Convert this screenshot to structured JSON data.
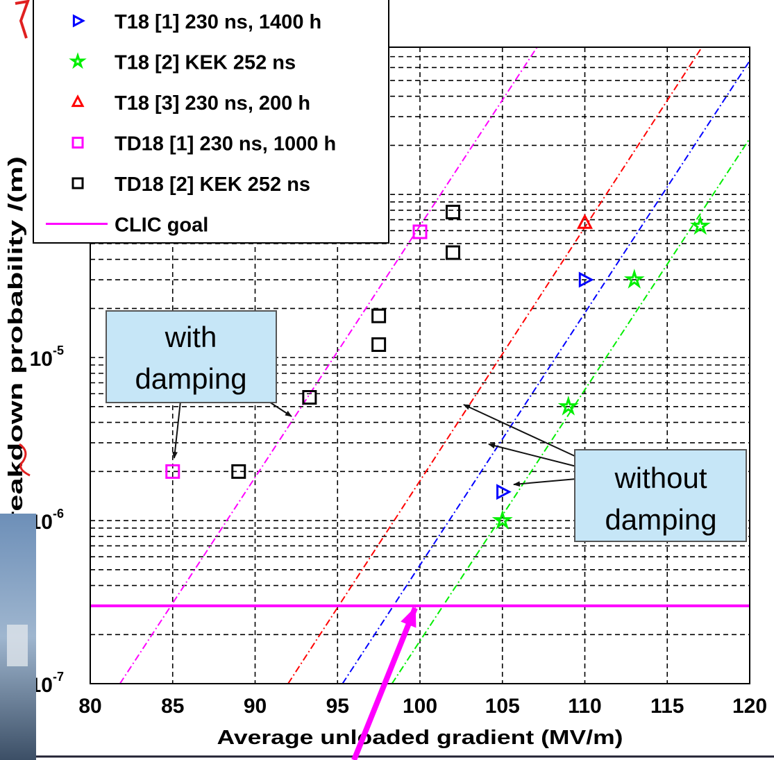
{
  "chart_data": {
    "type": "scatter",
    "xlabel": "Average unloaded gradient (MV/m)",
    "ylabel": "Breakdown probability /(m)",
    "xlim": [
      80,
      120
    ],
    "xticks": [
      80,
      85,
      90,
      95,
      100,
      105,
      110,
      115,
      120
    ],
    "ylim": [
      1e-07,
      0.0008
    ],
    "yscale": "log",
    "yticks": [
      {
        "value": 1e-07,
        "label": "10",
        "exponent": "-7"
      },
      {
        "value": 1e-06,
        "label": "10",
        "exponent": "-6"
      },
      {
        "value": 1e-05,
        "label": "10",
        "exponent": "-5"
      }
    ],
    "grid": true,
    "minor_grid": true,
    "series": [
      {
        "name": "T18 [1] 230 ns, 1400 h",
        "color": "#0000ff",
        "marker": "triangle-right",
        "x": [
          110,
          105
        ],
        "values": [
          3e-05,
          1.5e-06
        ]
      },
      {
        "name": "T18 [2] KEK 252 ns",
        "color": "#00ee00",
        "marker": "star",
        "x": [
          105,
          109,
          113,
          117
        ],
        "values": [
          1e-06,
          5e-06,
          3e-05,
          6.4e-05
        ]
      },
      {
        "name": "T18 [3] 230 ns, 200 h",
        "color": "#ff0000",
        "marker": "triangle-up",
        "x": [
          110
        ],
        "values": [
          6.7e-05
        ]
      },
      {
        "name": "TD18 [1] 230 ns, 1000 h",
        "color": "#ff00ff",
        "marker": "square",
        "x": [
          85,
          100
        ],
        "values": [
          2e-06,
          5.9e-05
        ]
      },
      {
        "name": "TD18 [2] KEK 252 ns",
        "color": "#000000",
        "marker": "square",
        "x": [
          89,
          93.3,
          97.5,
          97.5,
          102,
          102
        ],
        "values": [
          2e-06,
          5.7e-06,
          1.8e-05,
          1.2e-05,
          7.8e-05,
          4.4e-05
        ]
      },
      {
        "name": "CLIC goal",
        "color": "#ff00ff",
        "marker": "line",
        "x": [
          80,
          120
        ],
        "values": [
          3e-07,
          3e-07
        ]
      }
    ],
    "fit_lines": [
      {
        "color": "#ff00ff",
        "x": [
          81.8,
          107.1
        ],
        "values": [
          1e-07,
          0.0008
        ]
      },
      {
        "color": "#ff0000",
        "x": [
          92,
          117.1
        ],
        "values": [
          1e-07,
          0.0008
        ]
      },
      {
        "color": "#0000ff",
        "x": [
          95.3,
          120
        ],
        "values": [
          1e-07,
          0.00066
        ]
      },
      {
        "color": "#00ee00",
        "x": [
          98.3,
          120
        ],
        "values": [
          1e-07,
          0.00022
        ]
      }
    ],
    "annotations": [
      {
        "lines": [
          "with",
          "damping"
        ]
      },
      {
        "lines": [
          "without",
          "damping"
        ]
      }
    ]
  }
}
